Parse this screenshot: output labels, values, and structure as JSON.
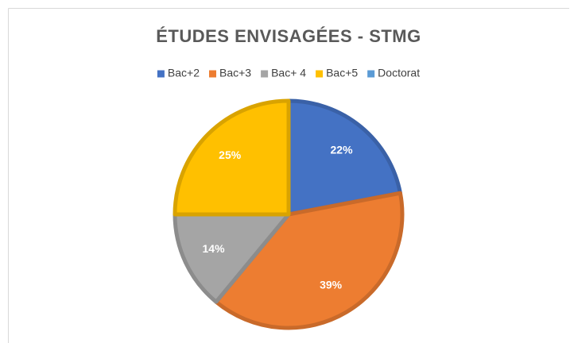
{
  "chart_data": {
    "type": "pie",
    "title": "ÉTUDES ENVISAGÉES - STMG",
    "categories": [
      "Bac+2",
      "Bac+3",
      "Bac+ 4",
      "Bac+5",
      "Doctorat"
    ],
    "values": [
      22,
      39,
      14,
      25,
      0
    ],
    "value_labels": [
      "22%",
      "39%",
      "14%",
      "25%",
      null
    ],
    "colors": [
      "#4472c4",
      "#ed7d31",
      "#a5a5a5",
      "#ffc000",
      "#5b9bd5"
    ],
    "legend": "top"
  }
}
